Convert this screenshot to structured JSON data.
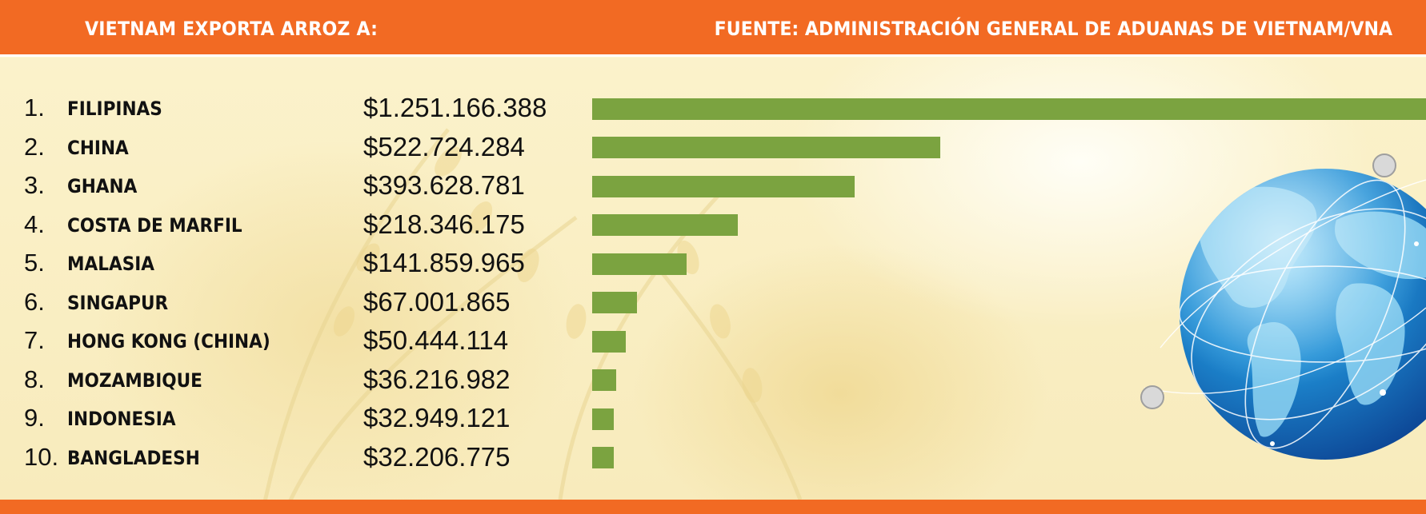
{
  "header": {
    "title": "VIETNAM EXPORTA ARROZ A:",
    "source": "FUENTE: ADMINISTRACIÓN GENERAL DE ADUANAS DE VIETNAM/VNA"
  },
  "colors": {
    "accent": "#f26a23",
    "bar": "#7ba340",
    "background": "#fdf6d4",
    "text": "#111111"
  },
  "chart_data": {
    "type": "bar",
    "orientation": "horizontal",
    "title": "VIETNAM EXPORTA ARROZ A:",
    "source": "FUENTE: ADMINISTRACIÓN GENERAL DE ADUANAS DE VIETNAM/VNA",
    "ranks": [
      "1.",
      "2.",
      "3.",
      "4.",
      "5.",
      "6.",
      "7.",
      "8.",
      "9.",
      "10."
    ],
    "categories": [
      "FILIPINAS",
      "CHINA",
      "GHANA",
      "COSTA DE MARFIL",
      "MALASIA",
      "SINGAPUR",
      "HONG KONG (CHINA)",
      "MOZAMBIQUE",
      "INDONESIA",
      "BANGLADESH"
    ],
    "labels": [
      "$1.251.166.388",
      "$522.724.284",
      "$393.628.781",
      "$218.346.175",
      "$141.859.965",
      "$67.001.865",
      "$50.444.114",
      "$36.216.982",
      "$32.949.121",
      "$32.206.775"
    ],
    "values": [
      1251166388,
      522724284,
      393628781,
      218346175,
      141859965,
      67001865,
      50444114,
      36216982,
      32949121,
      32206775
    ],
    "xlim": [
      0,
      1251166388
    ],
    "xlabel": "",
    "ylabel": "",
    "grid": false
  },
  "decor": {
    "globe": "globe-icon",
    "background": "rice-field-photo"
  }
}
